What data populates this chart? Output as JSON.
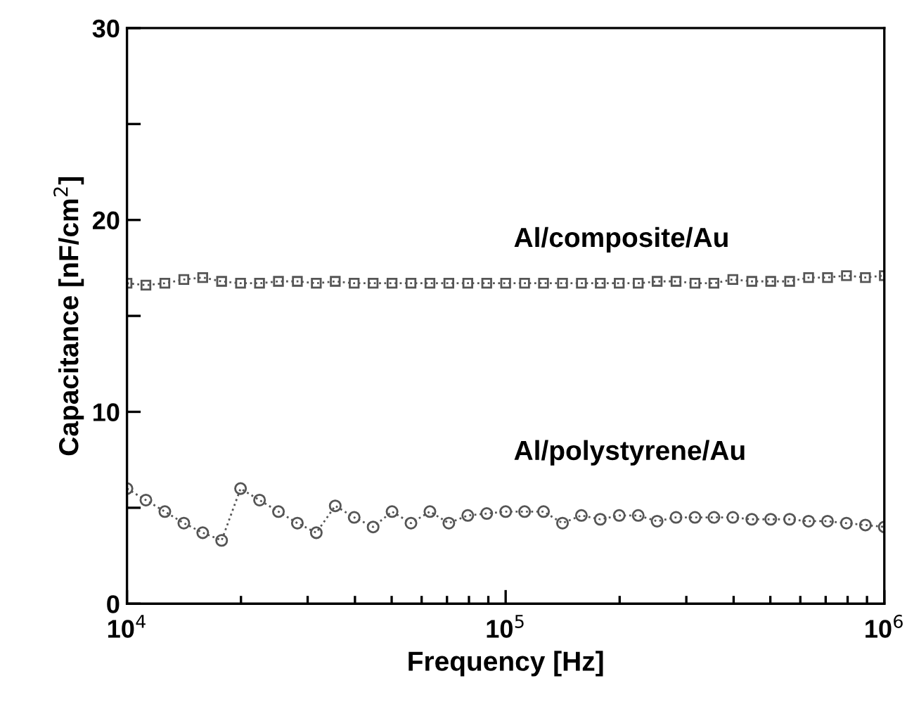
{
  "chart_data": {
    "type": "line",
    "xlabel": "Frequency [Hz]",
    "ylabel": "Capacitance [nF/cm$^{2}$]",
    "log": "x",
    "xlim": [
      10000,
      1000000
    ],
    "ylim": [
      0,
      30
    ],
    "xticks": [
      {
        "value": 10000,
        "label": "10$^{4}$"
      },
      {
        "value": 100000,
        "label": "10$^{5}$"
      },
      {
        "value": 1000000,
        "label": "10$^{6}$"
      }
    ],
    "yticks": [
      0,
      {
        "value": 5,
        "label": null
      },
      10,
      {
        "value": 15,
        "label": null
      },
      20,
      {
        "value": 25,
        "label": null
      },
      30
    ],
    "x": [
      10000,
      11220,
      12590,
      14130,
      15850,
      17780,
      19950,
      22390,
      25120,
      28180,
      31620,
      35480,
      39810,
      44670,
      50120,
      56230,
      63100,
      70790,
      79430,
      89130,
      100000,
      112200,
      125900,
      141300,
      158500,
      177800,
      199500,
      223900,
      251200,
      281800,
      316200,
      354800,
      398100,
      446700,
      501200,
      562300,
      631000,
      707900,
      794300,
      891300,
      1000000
    ],
    "grid": false,
    "legend": false,
    "line_style": "dotted",
    "series": [
      {
        "name": "Al/composite/Au",
        "color": "#555555",
        "marker": "square",
        "values": [
          16.7,
          16.6,
          16.7,
          16.9,
          17.0,
          16.8,
          16.7,
          16.7,
          16.8,
          16.8,
          16.7,
          16.8,
          16.7,
          16.7,
          16.7,
          16.7,
          16.7,
          16.7,
          16.7,
          16.7,
          16.7,
          16.7,
          16.7,
          16.7,
          16.7,
          16.7,
          16.7,
          16.7,
          16.8,
          16.8,
          16.7,
          16.7,
          16.9,
          16.8,
          16.8,
          16.8,
          17.0,
          17.0,
          17.1,
          17.0,
          17.1
        ]
      },
      {
        "name": "Al/polystyrene/Au",
        "color": "#555555",
        "marker": "circle",
        "values": [
          6.0,
          5.4,
          4.8,
          4.2,
          3.7,
          3.3,
          6.0,
          5.4,
          4.8,
          4.2,
          3.7,
          5.1,
          4.5,
          4.0,
          4.8,
          4.2,
          4.8,
          4.2,
          4.6,
          4.7,
          4.8,
          4.8,
          4.8,
          4.2,
          4.6,
          4.4,
          4.6,
          4.6,
          4.3,
          4.5,
          4.5,
          4.5,
          4.5,
          4.4,
          4.4,
          4.4,
          4.3,
          4.3,
          4.2,
          4.1,
          4.0
        ]
      }
    ]
  }
}
